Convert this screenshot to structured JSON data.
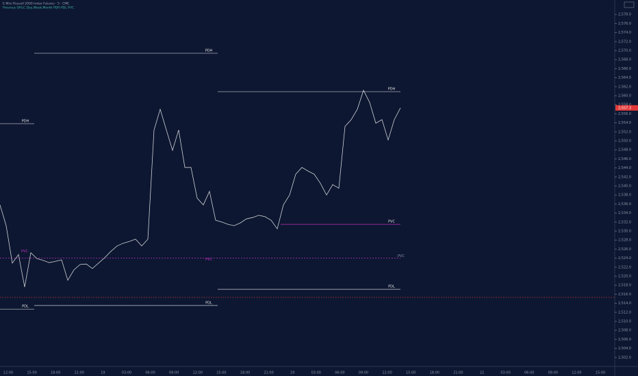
{
  "chart_data": {
    "type": "line",
    "title": "E-Mini Russell 2000 Index Futures · 5 · CME",
    "subtitle": "Previous OHLC  Day,Week,Month  PDH PDL PVC",
    "color": "#cfd2d8",
    "values": [
      2535.8,
      2531.2,
      2522.9,
      2524.8,
      2517.6,
      2525.2,
      2523.9,
      2523.5,
      2523.0,
      2523.3,
      2523.6,
      2519.1,
      2521.4,
      2522.6,
      2522.7,
      2521.7,
      2522.9,
      2524.1,
      2525.5,
      2526.7,
      2527.3,
      2527.7,
      2528.2,
      2526.7,
      2528.2,
      2552.4,
      2557.0,
      2552.4,
      2547.9,
      2552.4,
      2544.1,
      2544.1,
      2537.3,
      2535.8,
      2538.8,
      2532.4,
      2532.0,
      2531.5,
      2531.2,
      2531.8,
      2532.7,
      2533.0,
      2533.5,
      2533.2,
      2532.4,
      2530.5,
      2535.8,
      2538.0,
      2542.6,
      2544.1,
      2543.3,
      2542.6,
      2540.6,
      2538.0,
      2540.3,
      2539.5,
      2553.2,
      2554.7,
      2557.0,
      2561.2,
      2558.5,
      2553.9,
      2554.7,
      2550.2,
      2554.7,
      2557.3
    ],
    "last_price": {
      "value": 2557.3,
      "label": "2,557.3"
    },
    "levels": [
      {
        "label": "PDH",
        "value": 2569.4,
        "color": "#c8ccd4"
      },
      {
        "label": "PDH",
        "value": 2560.9,
        "color": "#c8ccd4"
      },
      {
        "label": "PDH",
        "value": 2553.8,
        "color": "#c8ccd4"
      },
      {
        "label": "PDL",
        "value": 2517.1,
        "color": "#c8ccd4"
      },
      {
        "label": "PDL",
        "value": 2513.5,
        "color": "#c8ccd4"
      },
      {
        "label": "PDL",
        "value": 2512.7,
        "color": "#c8ccd4"
      },
      {
        "label": "PVC",
        "value": 2524.0,
        "color": "#c02fc0"
      },
      {
        "label": "PVC",
        "value": 2531.5,
        "color": "#c02fc0"
      }
    ],
    "reference_line": {
      "value": 2515.3,
      "color": "#d23a3a"
    },
    "ylim": [
      2500,
      2580
    ],
    "yticks": [
      {
        "value": 2502,
        "label": "2,502.0"
      },
      {
        "value": 2504,
        "label": "2,504.0"
      },
      {
        "value": 2506,
        "label": "2,506.0"
      },
      {
        "value": 2508,
        "label": "2,508.0"
      },
      {
        "value": 2510,
        "label": "2,510.0"
      },
      {
        "value": 2512,
        "label": "2,512.0"
      },
      {
        "value": 2514,
        "label": "2,514.0"
      },
      {
        "value": 2516,
        "label": "2,516.0"
      },
      {
        "value": 2518,
        "label": "2,518.0"
      },
      {
        "value": 2520,
        "label": "2,520.0"
      },
      {
        "value": 2522,
        "label": "2,522.0"
      },
      {
        "value": 2524,
        "label": "2,524.0"
      },
      {
        "value": 2526,
        "label": "2,526.0"
      },
      {
        "value": 2528,
        "label": "2,528.0"
      },
      {
        "value": 2530,
        "label": "2,530.0"
      },
      {
        "value": 2532,
        "label": "2,532.0"
      },
      {
        "value": 2534,
        "label": "2,534.0"
      },
      {
        "value": 2536,
        "label": "2,536.0"
      },
      {
        "value": 2538,
        "label": "2,538.0"
      },
      {
        "value": 2540,
        "label": "2,540.0"
      },
      {
        "value": 2542,
        "label": "2,542.0"
      },
      {
        "value": 2544,
        "label": "2,544.0"
      },
      {
        "value": 2546,
        "label": "2,546.0"
      },
      {
        "value": 2548,
        "label": "2,548.0"
      },
      {
        "value": 2550,
        "label": "2,550.0"
      },
      {
        "value": 2552,
        "label": "2,552.0"
      },
      {
        "value": 2554,
        "label": "2,554.0"
      },
      {
        "value": 2556,
        "label": "2,556.0"
      },
      {
        "value": 2558,
        "label": "2,558.0"
      },
      {
        "value": 2560,
        "label": "2,560.0"
      },
      {
        "value": 2562,
        "label": "2,562.0"
      },
      {
        "value": 2564,
        "label": "2,564.0"
      },
      {
        "value": 2566,
        "label": "2,566.0"
      },
      {
        "value": 2568,
        "label": "2,568.0"
      },
      {
        "value": 2570,
        "label": "2,570.0"
      },
      {
        "value": 2572,
        "label": "2,572.0"
      },
      {
        "value": 2574,
        "label": "2,574.0"
      },
      {
        "value": 2576,
        "label": "2,576.0"
      },
      {
        "value": 2578,
        "label": "2,578.0"
      }
    ],
    "time_labels": [
      "12:00",
      "15:00",
      "18:00",
      "21:00",
      "19",
      "03:00",
      "06:00",
      "09:00",
      "12:00",
      "15:00",
      "18:00",
      "21:00",
      "19",
      "03:00",
      "06:00",
      "09:00",
      "12:00",
      "15:00",
      "18:00",
      "21:00",
      "22",
      "03:00",
      "06:00",
      "09:00",
      "12:00",
      "15:00"
    ]
  }
}
